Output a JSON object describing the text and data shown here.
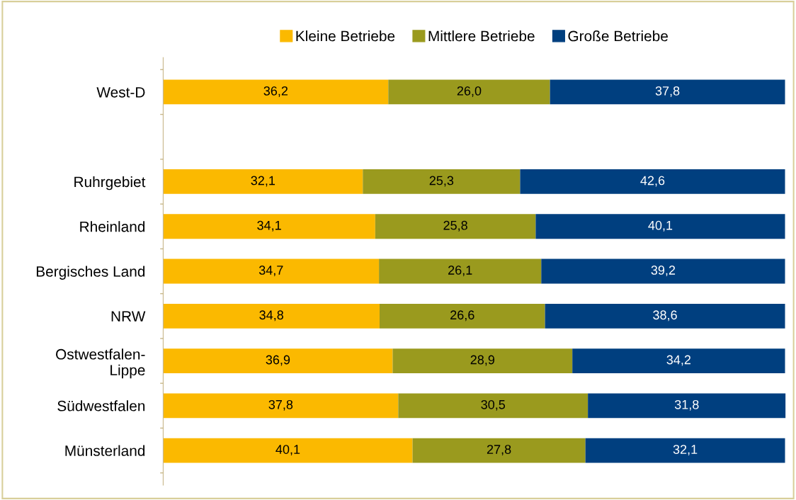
{
  "chart_data": {
    "type": "bar",
    "orientation": "horizontal",
    "stacked": true,
    "legend": "top",
    "grid": false,
    "tick_labels": "y",
    "categories": [
      "West-D",
      null,
      "Ruhrgebiet",
      "Rheinland",
      "Bergisches Land",
      "NRW",
      "Ostwestfalen-\nLippe",
      "Südwestfalen",
      "Münsterland"
    ],
    "series": [
      {
        "name": "Kleine Betriebe",
        "color": "#fbb900",
        "values": [
          36.2,
          null,
          32.1,
          34.1,
          34.7,
          34.8,
          36.9,
          37.8,
          40.1
        ],
        "value_labels": [
          "36,2",
          null,
          "32,1",
          "34,1",
          "34,7",
          "34,8",
          "36,9",
          "37,8",
          "40,1"
        ]
      },
      {
        "name": "Mittlere Betriebe",
        "color": "#9a9a1e",
        "values": [
          26.0,
          null,
          25.3,
          25.8,
          26.1,
          26.6,
          28.9,
          30.5,
          27.8
        ],
        "value_labels": [
          "26,0",
          null,
          "25,3",
          "25,8",
          "26,1",
          "26,6",
          "28,9",
          "30,5",
          "27,8"
        ]
      },
      {
        "name": "Große Betriebe",
        "color": "#003f7f",
        "values": [
          37.8,
          null,
          42.6,
          40.1,
          39.2,
          38.6,
          34.2,
          31.8,
          32.1
        ],
        "value_labels": [
          "37,8",
          null,
          "42,6",
          "40,1",
          "39,2",
          "38,6",
          "34,2",
          "31,8",
          "32,1"
        ]
      }
    ]
  }
}
